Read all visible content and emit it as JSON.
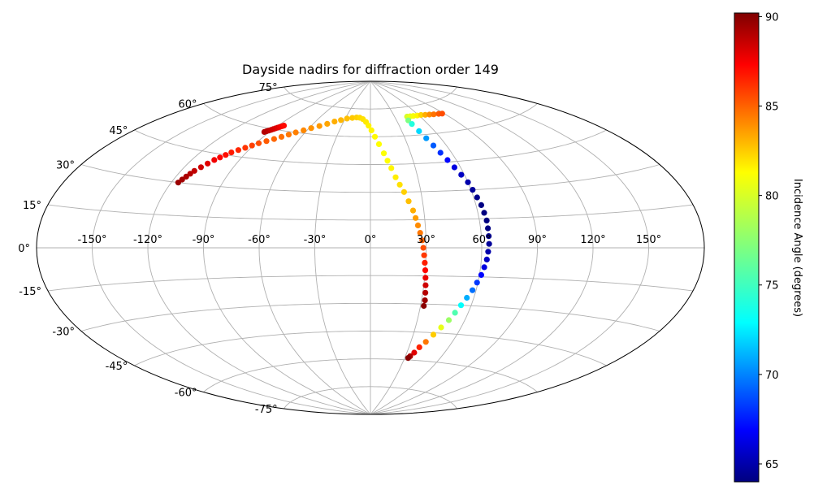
{
  "chart_data": {
    "type": "scatter",
    "projection": "aitoff",
    "title": "Dayside nadirs for diffraction order 149",
    "xlabel": "",
    "ylabel": "",
    "x_tick_labels": [
      "-150°",
      "-120°",
      "-90°",
      "-60°",
      "-30°",
      "0°",
      "30°",
      "60°",
      "90°",
      "120°",
      "150°"
    ],
    "x_tick_values": [
      -150,
      -120,
      -90,
      -60,
      -30,
      0,
      30,
      60,
      90,
      120,
      150
    ],
    "y_tick_labels": [
      "-75°",
      "-60°",
      "-45°",
      "-30°",
      "-15°",
      "0°",
      "15°",
      "30°",
      "45°",
      "60°",
      "75°"
    ],
    "y_tick_values": [
      -75,
      -60,
      -45,
      -30,
      -15,
      0,
      15,
      30,
      45,
      60,
      75
    ],
    "grid": true,
    "xlim": [
      -180,
      180
    ],
    "ylim": [
      -90,
      90
    ],
    "colormap": "jet",
    "colorbar": {
      "label": "Incidence Angle (degrees)",
      "range": [
        64,
        90.2
      ],
      "tick_values": [
        65,
        70,
        75,
        80,
        85,
        90
      ],
      "tick_labels": [
        "65",
        "70",
        "75",
        "80",
        "85",
        "90"
      ]
    },
    "series": [
      {
        "points": [
          [
            -94,
            58,
            89
          ],
          [
            -93,
            58.5,
            89
          ],
          [
            -92,
            59,
            88.8
          ],
          [
            -91,
            59.5,
            88.6
          ],
          [
            -90,
            60,
            88.4
          ],
          [
            -89,
            60.5,
            88.2
          ],
          [
            -88,
            61,
            88
          ],
          [
            -87,
            61.5,
            87.7
          ],
          [
            -86,
            62,
            87.4
          ],
          [
            -85,
            62.4,
            87.1
          ],
          [
            -116,
            30,
            89.6
          ],
          [
            -115,
            31.5,
            89.4
          ],
          [
            -114,
            33,
            89.2
          ],
          [
            -113,
            34.5,
            89
          ],
          [
            -112,
            36,
            88.7
          ],
          [
            -110,
            38,
            88.4
          ],
          [
            -108,
            40,
            88
          ],
          [
            -106,
            42,
            87.6
          ],
          [
            -104,
            43.5,
            87.3
          ],
          [
            -102,
            45,
            87
          ],
          [
            -100,
            46.5,
            86.7
          ],
          [
            -97,
            48,
            86.4
          ],
          [
            -94,
            49.5,
            86.1
          ],
          [
            -91,
            51,
            85.8
          ],
          [
            -88,
            52.5,
            85.5
          ],
          [
            -84,
            54,
            85.2
          ],
          [
            -80,
            55.5,
            84.9
          ],
          [
            -76,
            57,
            84.7
          ],
          [
            -72,
            58.5,
            84.5
          ],
          [
            -68,
            60,
            84.3
          ],
          [
            -63,
            61.5,
            84.1
          ],
          [
            -58,
            63,
            83.9
          ],
          [
            -52,
            64.5,
            83.7
          ],
          [
            -46,
            66,
            83.4
          ],
          [
            -40,
            67.5,
            83.2
          ],
          [
            -34,
            68.5,
            83
          ],
          [
            -28,
            69.5,
            82.8
          ],
          [
            -22,
            70,
            82.6
          ],
          [
            -17,
            70.3,
            82.4
          ],
          [
            -13,
            70.2,
            82.2
          ],
          [
            -9,
            69.5,
            82
          ],
          [
            -5,
            68,
            81.8
          ],
          [
            -2,
            66,
            81.6
          ],
          [
            1,
            63.5,
            81.5
          ],
          [
            4,
            60,
            81.4
          ],
          [
            7,
            56,
            81.3
          ],
          [
            10,
            51,
            81.2
          ],
          [
            12,
            47,
            81.3
          ],
          [
            14,
            43,
            81.5
          ],
          [
            16,
            38,
            81.7
          ],
          [
            18,
            34,
            82
          ],
          [
            20,
            30,
            82.4
          ],
          [
            22,
            25,
            82.8
          ],
          [
            24,
            20,
            83.2
          ],
          [
            25,
            16,
            83.6
          ],
          [
            26,
            12,
            84
          ],
          [
            27,
            8,
            84.5
          ],
          [
            28,
            4,
            85
          ],
          [
            28.5,
            0,
            85.5
          ],
          [
            29,
            -4,
            86
          ],
          [
            29.5,
            -8,
            86.6
          ],
          [
            30,
            -12,
            87.2
          ],
          [
            30.5,
            -16,
            87.8
          ],
          [
            31,
            -20,
            88.4
          ],
          [
            31.5,
            -24,
            89
          ],
          [
            32,
            -28,
            89.6
          ],
          [
            32,
            -31,
            90
          ],
          [
            45,
            70,
            80
          ],
          [
            49,
            70,
            80.5
          ],
          [
            53,
            70,
            81
          ],
          [
            58,
            70,
            81.5
          ],
          [
            63,
            70,
            82.3
          ],
          [
            68,
            69.8,
            83.2
          ],
          [
            73,
            69.6,
            84
          ],
          [
            78,
            69.4,
            84.6
          ],
          [
            84,
            69.2,
            85.2
          ],
          [
            88,
            69,
            85.5
          ],
          [
            43,
            68,
            77
          ],
          [
            44,
            66,
            74
          ],
          [
            46,
            62,
            72
          ],
          [
            48,
            58,
            70.5
          ],
          [
            50,
            54,
            69
          ],
          [
            52,
            50,
            68
          ],
          [
            54,
            46,
            67
          ],
          [
            56,
            42,
            66.2
          ],
          [
            58,
            38,
            65.5
          ],
          [
            60,
            34,
            65
          ],
          [
            61,
            30,
            64.6
          ],
          [
            62,
            26,
            64.3
          ],
          [
            63,
            22,
            64.1
          ],
          [
            63.5,
            18,
            64
          ],
          [
            64,
            14,
            64
          ],
          [
            64,
            10,
            64.1
          ],
          [
            64,
            6,
            64.3
          ],
          [
            64,
            2,
            64.6
          ],
          [
            63.5,
            -2,
            65
          ],
          [
            63,
            -6,
            65.5
          ],
          [
            62,
            -10,
            66.2
          ],
          [
            61,
            -14,
            67
          ],
          [
            59.5,
            -18,
            68.2
          ],
          [
            58,
            -22,
            69.5
          ],
          [
            56,
            -26,
            71
          ],
          [
            54,
            -30,
            73
          ],
          [
            52,
            -34,
            75.5
          ],
          [
            50,
            -38,
            78
          ],
          [
            47,
            -42,
            80.5
          ],
          [
            44,
            -46,
            82.5
          ],
          [
            41,
            -50,
            84.5
          ],
          [
            38,
            -53,
            86.5
          ],
          [
            36,
            -56,
            88
          ],
          [
            34,
            -58,
            89.2
          ],
          [
            33,
            -59,
            90
          ]
        ]
      }
    ]
  }
}
